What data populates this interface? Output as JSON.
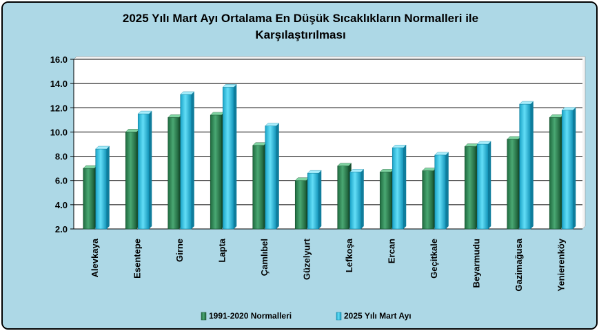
{
  "chart_data": {
    "type": "bar",
    "title_lines": [
      "2025 Yılı Mart Ayı Ortalama En Düşük Sıcaklıkların Normalleri ile",
      "Karşılaştırılması"
    ],
    "categories": [
      "Alevkaya",
      "Esentepe",
      "Girne",
      "Lapta",
      "Çamlıbel",
      "Güzelyurt",
      "Lefkoşa",
      "Ercan",
      "Geçitkale",
      "Beyarmudu",
      "Gazimağusa",
      "Yenierenköy"
    ],
    "series": [
      {
        "name": "1991-2020  Normalleri",
        "color": "#2e8b57",
        "values": [
          7.0,
          10.0,
          11.2,
          11.4,
          8.9,
          6.0,
          7.2,
          6.7,
          6.8,
          8.8,
          9.4,
          11.2
        ]
      },
      {
        "name": "2025 Yılı Mart Ayı",
        "color": "#29c4ea",
        "values": [
          8.6,
          11.5,
          13.1,
          13.7,
          10.5,
          6.6,
          6.7,
          8.7,
          8.1,
          9.0,
          12.3,
          11.8
        ]
      }
    ],
    "ylim": [
      2.0,
      16.0
    ],
    "yticks": [
      "2.0",
      "4.0",
      "6.0",
      "8.0",
      "10.0",
      "12.0",
      "14.0",
      "16.0"
    ],
    "grid": true,
    "legend_position": "bottom",
    "background_color": "#add8e6"
  }
}
